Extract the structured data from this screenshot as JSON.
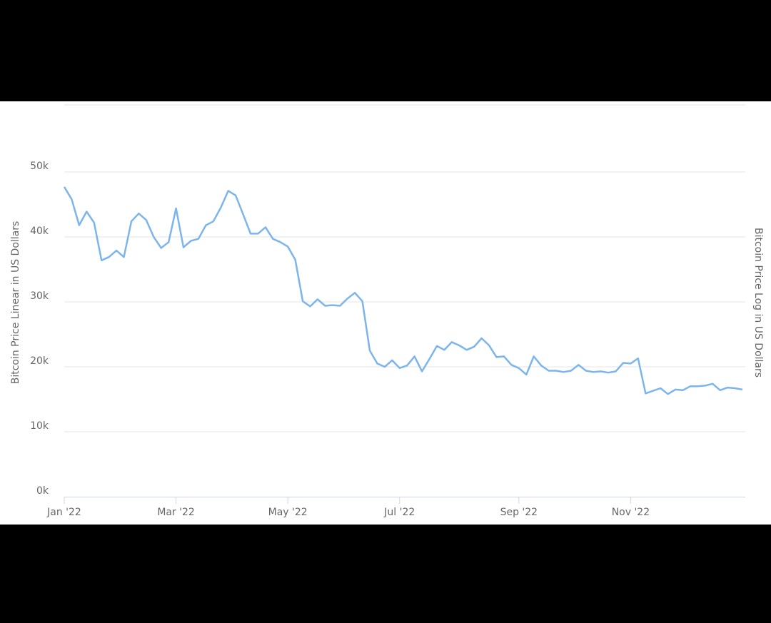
{
  "chart_data": {
    "type": "line",
    "y_axis_title": "Bitcoin Price Linear in US Dollars",
    "y2_axis_title": "Bitcoin Price Log in US Dollars",
    "categories": [
      "Jan '22",
      null,
      null,
      null,
      null,
      null,
      null,
      null,
      null,
      null,
      null,
      null,
      null,
      null,
      null,
      "Mar '22",
      null,
      null,
      null,
      null,
      null,
      null,
      null,
      null,
      null,
      null,
      null,
      null,
      null,
      null,
      "May '22",
      null,
      null,
      null,
      null,
      null,
      null,
      null,
      null,
      null,
      null,
      null,
      null,
      null,
      null,
      "Jul '22",
      null,
      null,
      null,
      null,
      null,
      null,
      null,
      null,
      null,
      null,
      null,
      null,
      null,
      null,
      null,
      "Sep '22",
      null,
      null,
      null,
      null,
      null,
      null,
      null,
      null,
      null,
      null,
      null,
      null,
      null,
      null,
      "Nov '22",
      null,
      null,
      null,
      null,
      null,
      null,
      null,
      null,
      null,
      null,
      null,
      null,
      null,
      null,
      null
    ],
    "series": [
      {
        "color": "#7cb5ec",
        "values": [
          47700,
          45800,
          41800,
          43900,
          42200,
          36400,
          36900,
          37900,
          36900,
          42400,
          43600,
          42600,
          40000,
          38300,
          39200,
          44400,
          38400,
          39400,
          39700,
          41800,
          42400,
          44500,
          47100,
          46400,
          43500,
          40500,
          40500,
          41500,
          39700,
          39200,
          38500,
          36500,
          30100,
          29300,
          30400,
          29400,
          29500,
          29400,
          30500,
          31400,
          30100,
          22500,
          20500,
          20000,
          21000,
          19800,
          20200,
          21600,
          19300,
          21200,
          23200,
          22600,
          23800,
          23300,
          22600,
          23100,
          24400,
          23300,
          21500,
          21600,
          20300,
          19800,
          18800,
          21600,
          20200,
          19400,
          19400,
          19200,
          19400,
          20300,
          19400,
          19200,
          19300,
          19100,
          19300,
          20600,
          20500,
          21300,
          15900,
          16300,
          16700,
          15800,
          16500,
          16400,
          17000,
          17000,
          17100,
          17400,
          16400,
          16800,
          16700,
          16500
        ]
      }
    ],
    "ylim": [
      0,
      60000
    ],
    "yticks": [
      {
        "value": 0,
        "label": "0k"
      },
      {
        "value": 10000,
        "label": "10k"
      },
      {
        "value": 20000,
        "label": "20k"
      },
      {
        "value": 30000,
        "label": "30k"
      },
      {
        "value": 40000,
        "label": "40k"
      },
      {
        "value": 50000,
        "label": "50k"
      }
    ],
    "grid": true
  }
}
